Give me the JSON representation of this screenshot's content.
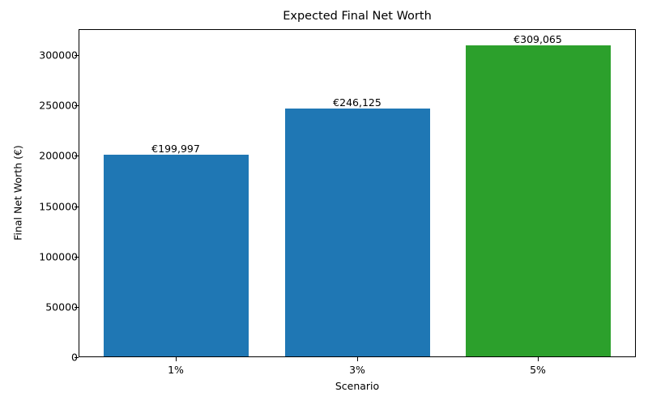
{
  "chart_data": {
    "type": "bar",
    "title": "Expected Final Net Worth",
    "xlabel": "Scenario",
    "ylabel": "Final Net Worth (€)",
    "categories": [
      "1%",
      "3%",
      "5%"
    ],
    "values": [
      199997,
      246125,
      309065
    ],
    "data_labels": [
      "€199,997",
      "€246,125",
      "€309,065"
    ],
    "colors": [
      "#1f77b4",
      "#1f77b4",
      "#2ca02c"
    ],
    "ylim": [
      0,
      325000
    ],
    "yticks": [
      "0",
      "50000",
      "100000",
      "150000",
      "200000",
      "250000",
      "300000"
    ],
    "ytick_values": [
      0,
      50000,
      100000,
      150000,
      200000,
      250000,
      300000
    ],
    "grid": false,
    "legend": null
  }
}
